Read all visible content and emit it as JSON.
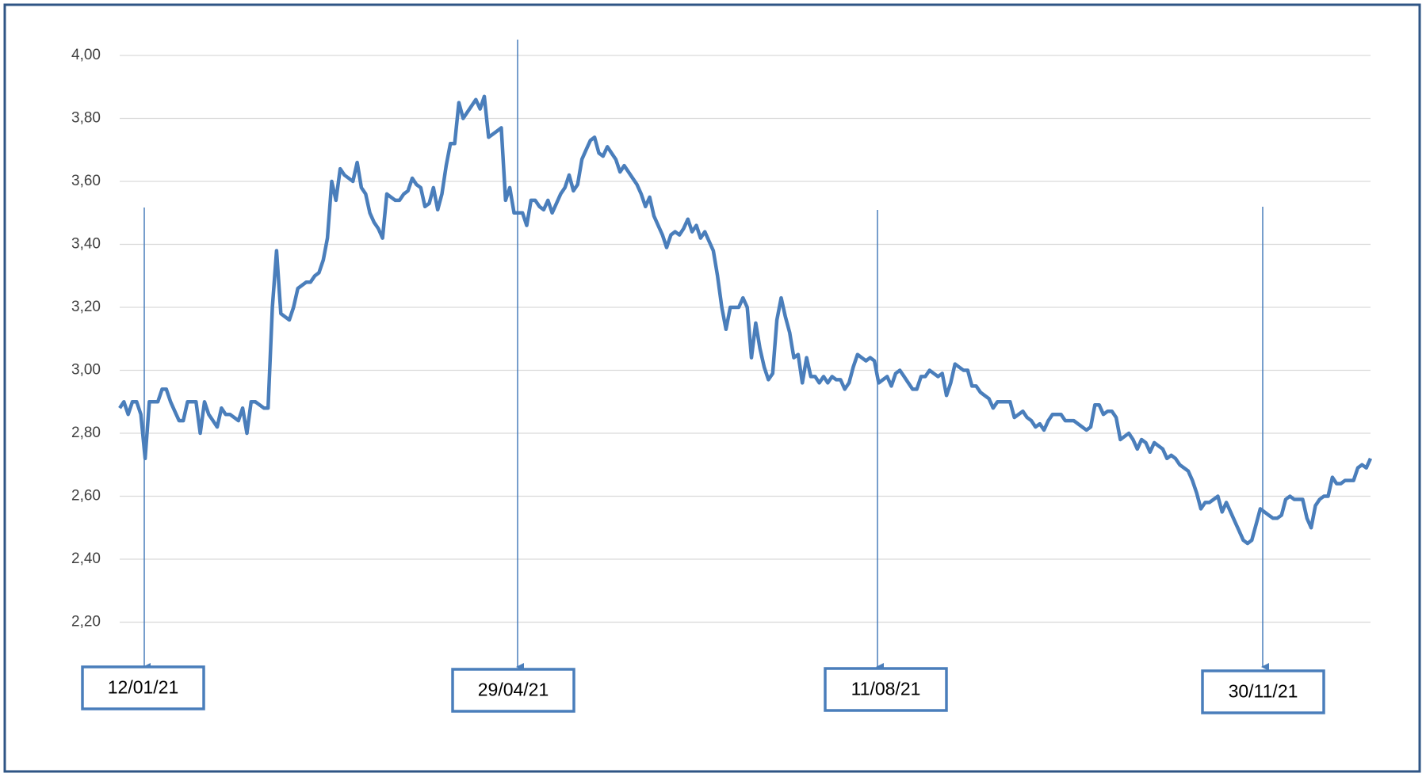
{
  "chart_data": {
    "type": "line",
    "color": "#4a7ebb",
    "ylim": [
      2.0,
      4.0
    ],
    "yticks": [
      {
        "value": 2.2,
        "label": "2,20"
      },
      {
        "value": 2.4,
        "label": "2,40"
      },
      {
        "value": 2.6,
        "label": "2,60"
      },
      {
        "value": 2.8,
        "label": "2,80"
      },
      {
        "value": 3.0,
        "label": "3,00"
      },
      {
        "value": 3.2,
        "label": "3,20"
      },
      {
        "value": 3.4,
        "label": "3,40"
      },
      {
        "value": 3.6,
        "label": "3,60"
      },
      {
        "value": 3.8,
        "label": "3,80"
      },
      {
        "value": 4.0,
        "label": "4,00"
      }
    ],
    "grid": true,
    "annotations": [
      "12/01/21",
      "29/04/21",
      "11/08/21",
      "30/11/21"
    ],
    "values": [
      2.88,
      2.9,
      2.86,
      2.9,
      2.9,
      2.86,
      2.72,
      2.9,
      2.9,
      2.9,
      2.94,
      2.94,
      2.9,
      2.87,
      2.84,
      2.84,
      2.9,
      2.9,
      2.9,
      2.8,
      2.9,
      2.86,
      2.84,
      2.82,
      2.88,
      2.86,
      2.86,
      2.85,
      2.84,
      2.88,
      2.8,
      2.9,
      2.9,
      2.89,
      2.88,
      2.88,
      3.2,
      3.38,
      3.18,
      3.17,
      3.16,
      3.2,
      3.26,
      3.27,
      3.28,
      3.28,
      3.3,
      3.31,
      3.35,
      3.42,
      3.6,
      3.54,
      3.64,
      3.62,
      3.61,
      3.6,
      3.66,
      3.58,
      3.56,
      3.5,
      3.47,
      3.45,
      3.42,
      3.56,
      3.55,
      3.54,
      3.54,
      3.56,
      3.57,
      3.61,
      3.59,
      3.58,
      3.52,
      3.53,
      3.58,
      3.51,
      3.56,
      3.65,
      3.72,
      3.72,
      3.85,
      3.8,
      3.82,
      3.84,
      3.86,
      3.83,
      3.87,
      3.74,
      3.75,
      3.76,
      3.77,
      3.54,
      3.58,
      3.5,
      3.5,
      3.5,
      3.46,
      3.54,
      3.54,
      3.52,
      3.51,
      3.54,
      3.5,
      3.53,
      3.56,
      3.58,
      3.62,
      3.57,
      3.59,
      3.67,
      3.7,
      3.73,
      3.74,
      3.69,
      3.68,
      3.71,
      3.69,
      3.67,
      3.63,
      3.65,
      3.63,
      3.61,
      3.59,
      3.56,
      3.52,
      3.55,
      3.49,
      3.46,
      3.43,
      3.39,
      3.43,
      3.44,
      3.43,
      3.45,
      3.48,
      3.44,
      3.46,
      3.42,
      3.44,
      3.41,
      3.38,
      3.3,
      3.2,
      3.13,
      3.2,
      3.2,
      3.2,
      3.23,
      3.2,
      3.04,
      3.15,
      3.07,
      3.01,
      2.97,
      2.99,
      3.16,
      3.23,
      3.17,
      3.12,
      3.04,
      3.05,
      2.96,
      3.04,
      2.98,
      2.98,
      2.96,
      2.98,
      2.96,
      2.98,
      2.97,
      2.97,
      2.94,
      2.96,
      3.01,
      3.05,
      3.04,
      3.03,
      3.04,
      3.03,
      2.96,
      2.97,
      2.98,
      2.95,
      2.99,
      3.0,
      2.98,
      2.96,
      2.94,
      2.94,
      2.98,
      2.98,
      3.0,
      2.99,
      2.98,
      2.99,
      2.92,
      2.96,
      3.02,
      3.01,
      3.0,
      3.0,
      2.95,
      2.95,
      2.93,
      2.92,
      2.91,
      2.88,
      2.9,
      2.9,
      2.9,
      2.9,
      2.85,
      2.86,
      2.87,
      2.85,
      2.84,
      2.82,
      2.83,
      2.81,
      2.84,
      2.86,
      2.86,
      2.86,
      2.84,
      2.84,
      2.84,
      2.83,
      2.82,
      2.81,
      2.82,
      2.89,
      2.89,
      2.86,
      2.87,
      2.87,
      2.85,
      2.78,
      2.79,
      2.8,
      2.78,
      2.75,
      2.78,
      2.77,
      2.74,
      2.77,
      2.76,
      2.75,
      2.72,
      2.73,
      2.72,
      2.7,
      2.69,
      2.68,
      2.65,
      2.61,
      2.56,
      2.58,
      2.58,
      2.59,
      2.6,
      2.55,
      2.58,
      2.55,
      2.52,
      2.49,
      2.46,
      2.45,
      2.46,
      2.51,
      2.56,
      2.55,
      2.54,
      2.53,
      2.53,
      2.54,
      2.59,
      2.6,
      2.59,
      2.59,
      2.59,
      2.53,
      2.5,
      2.57,
      2.59,
      2.6,
      2.6,
      2.66,
      2.64,
      2.64,
      2.65,
      2.65,
      2.65,
      2.69,
      2.7,
      2.69,
      2.72
    ]
  }
}
